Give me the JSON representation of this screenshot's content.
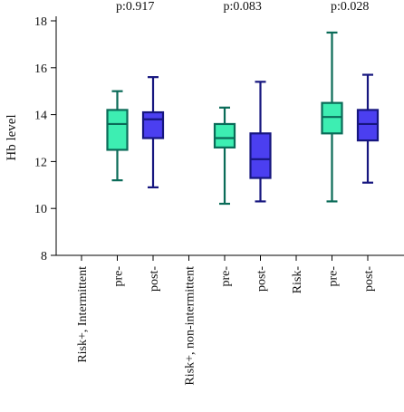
{
  "chart_data": {
    "type": "box",
    "title": "",
    "ylabel": "Hb level",
    "xlabel": "",
    "ylim": [
      8,
      18
    ],
    "yticks": [
      8,
      10,
      12,
      14,
      16,
      18
    ],
    "categories": [
      "Risk+, Intermittent",
      "pre-",
      "post-",
      "Risk+, non-intermittent",
      "pre-",
      "post-",
      "Risk-",
      "pre-",
      "post-"
    ],
    "annotations": [
      "p:0.917",
      "p:0.083",
      "p:0.028"
    ],
    "series_colors": {
      "pre": "#3deeb2",
      "post": "#4b3ff0"
    },
    "edge_colors": {
      "pre": "#0a6b58",
      "post": "#16167f"
    },
    "boxes": [
      {
        "category_index": 1,
        "kind": "pre",
        "min": 11.2,
        "q1": 12.5,
        "median": 13.6,
        "q3": 14.2,
        "max": 15.0
      },
      {
        "category_index": 2,
        "kind": "post",
        "min": 10.9,
        "q1": 13.0,
        "median": 13.8,
        "q3": 14.1,
        "max": 15.6
      },
      {
        "category_index": 4,
        "kind": "pre",
        "min": 10.2,
        "q1": 12.6,
        "median": 13.0,
        "q3": 13.6,
        "max": 14.3
      },
      {
        "category_index": 5,
        "kind": "post",
        "min": 10.3,
        "q1": 11.3,
        "median": 12.1,
        "q3": 13.2,
        "max": 15.4
      },
      {
        "category_index": 7,
        "kind": "pre",
        "min": 10.3,
        "q1": 13.2,
        "median": 13.9,
        "q3": 14.5,
        "max": 17.5
      },
      {
        "category_index": 8,
        "kind": "post",
        "min": 11.1,
        "q1": 12.9,
        "median": 13.6,
        "q3": 14.2,
        "max": 15.7
      }
    ]
  }
}
